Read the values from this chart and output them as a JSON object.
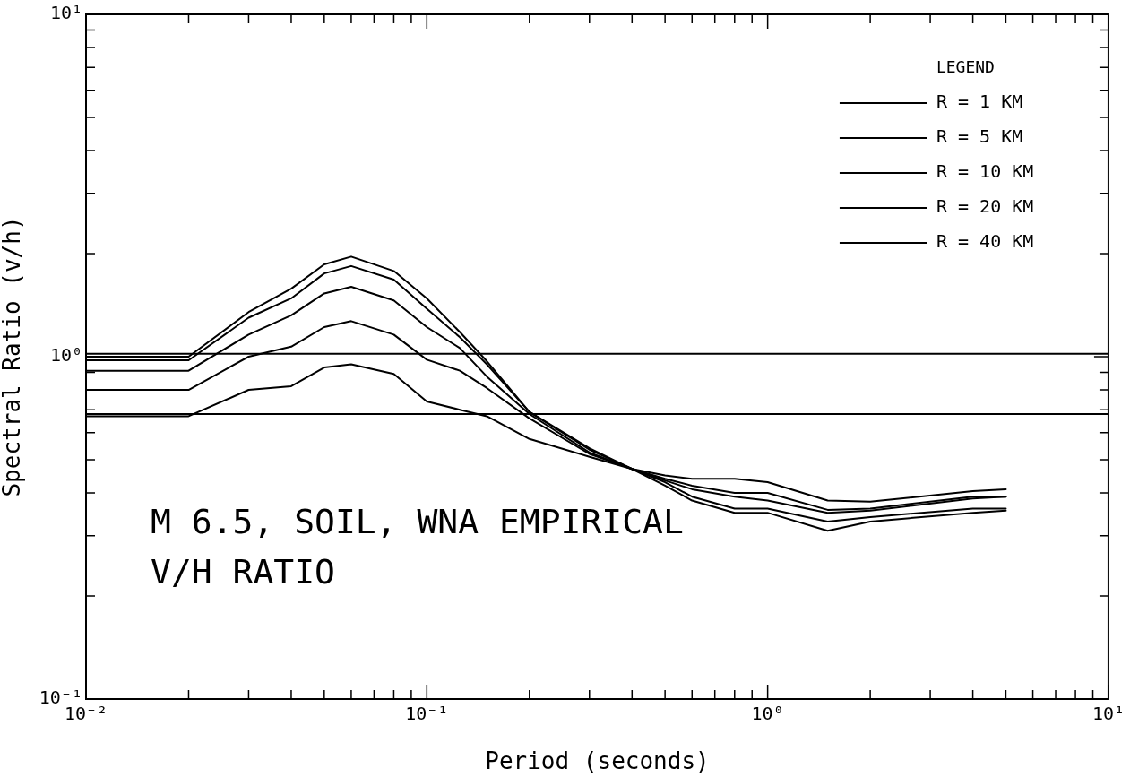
{
  "chart_data": {
    "type": "line",
    "xlabel": "Period (seconds)",
    "ylabel": "Spectral Ratio (v/h)",
    "log": "xy",
    "grid": false,
    "legend": "top right",
    "legend_title": "LEGEND",
    "marker": "none",
    "line_style": "solid",
    "x": [
      0.01,
      0.02,
      0.03,
      0.04,
      0.05,
      0.06,
      0.08,
      0.1,
      0.125,
      0.15,
      0.2,
      0.3,
      0.4,
      0.5,
      0.6,
      0.8,
      1.0,
      1.5,
      2,
      4,
      5
    ],
    "series": [
      {
        "name": "R = 1 KM",
        "color": "#000000",
        "values": [
          1.0,
          1.0,
          1.35,
          1.58,
          1.86,
          1.96,
          1.78,
          1.48,
          1.18,
          0.97,
          0.69,
          0.54,
          0.47,
          0.42,
          0.38,
          0.35,
          0.35,
          0.31,
          0.33,
          0.35,
          0.355
        ]
      },
      {
        "name": "R = 5 KM",
        "color": "#000000",
        "values": [
          0.976,
          0.976,
          1.3,
          1.48,
          1.75,
          1.84,
          1.68,
          1.38,
          1.14,
          0.95,
          0.69,
          0.535,
          0.47,
          0.43,
          0.39,
          0.36,
          0.36,
          0.33,
          0.34,
          0.36,
          0.36
        ]
      },
      {
        "name": "R = 10 KM",
        "color": "#000000",
        "values": [
          0.91,
          0.91,
          1.16,
          1.32,
          1.53,
          1.6,
          1.46,
          1.22,
          1.06,
          0.875,
          0.68,
          0.525,
          0.47,
          0.435,
          0.41,
          0.39,
          0.38,
          0.35,
          0.355,
          0.385,
          0.39
        ]
      },
      {
        "name": "R = 20 KM",
        "color": "#000000",
        "values": [
          0.8,
          0.8,
          1.0,
          1.07,
          1.22,
          1.27,
          1.16,
          0.98,
          0.91,
          0.81,
          0.66,
          0.52,
          0.47,
          0.44,
          0.42,
          0.4,
          0.4,
          0.357,
          0.36,
          0.39,
          0.39
        ]
      },
      {
        "name": "R = 40 KM",
        "color": "#000000",
        "values": [
          0.67,
          0.67,
          0.8,
          0.82,
          0.93,
          0.95,
          0.89,
          0.74,
          0.7,
          0.67,
          0.575,
          0.51,
          0.47,
          0.45,
          0.44,
          0.44,
          0.43,
          0.38,
          0.377,
          0.405,
          0.41
        ]
      }
    ],
    "xlim": [
      0.01,
      10
    ],
    "xticks": [
      {
        "value": 0.01,
        "label": "10⁻²"
      },
      {
        "value": 0.02,
        "label": null
      },
      {
        "value": 0.03,
        "label": null
      },
      {
        "value": 0.04,
        "label": null
      },
      {
        "value": 0.05,
        "label": null
      },
      {
        "value": 0.06,
        "label": null
      },
      {
        "value": 0.07,
        "label": null
      },
      {
        "value": 0.08,
        "label": null
      },
      {
        "value": 0.09,
        "label": null
      },
      {
        "value": 0.1,
        "label": "10⁻¹"
      },
      {
        "value": 0.2,
        "label": null
      },
      {
        "value": 0.3,
        "label": null
      },
      {
        "value": 0.4,
        "label": null
      },
      {
        "value": 0.5,
        "label": null
      },
      {
        "value": 0.6,
        "label": null
      },
      {
        "value": 0.7,
        "label": null
      },
      {
        "value": 0.8,
        "label": null
      },
      {
        "value": 0.9,
        "label": null
      },
      {
        "value": 1,
        "label": "10⁰"
      },
      {
        "value": 2,
        "label": null
      },
      {
        "value": 3,
        "label": null
      },
      {
        "value": 4,
        "label": null
      },
      {
        "value": 5,
        "label": null
      },
      {
        "value": 6,
        "label": null
      },
      {
        "value": 7,
        "label": null
      },
      {
        "value": 8,
        "label": null
      },
      {
        "value": 9,
        "label": null
      },
      {
        "value": 10,
        "label": "10¹"
      }
    ],
    "ylim": [
      0.1,
      10
    ],
    "yticks": [
      {
        "value": 0.1,
        "label": "10⁻¹"
      },
      {
        "value": 0.2,
        "label": null
      },
      {
        "value": 0.3,
        "label": null
      },
      {
        "value": 0.4,
        "label": null
      },
      {
        "value": 0.5,
        "label": null
      },
      {
        "value": 0.6,
        "label": null
      },
      {
        "value": 0.7,
        "label": null
      },
      {
        "value": 0.8,
        "label": null
      },
      {
        "value": 0.9,
        "label": null
      },
      {
        "value": 1,
        "label": "10⁰"
      },
      {
        "value": 2,
        "label": null
      },
      {
        "value": 3,
        "label": null
      },
      {
        "value": 4,
        "label": null
      },
      {
        "value": 5,
        "label": null
      },
      {
        "value": 6,
        "label": null
      },
      {
        "value": 7,
        "label": null
      },
      {
        "value": 8,
        "label": null
      },
      {
        "value": 9,
        "label": null
      },
      {
        "value": 10,
        "label": "10¹"
      }
    ],
    "ref_lines": [
      {
        "axis": "y",
        "value": 1.02,
        "color": "#000000"
      },
      {
        "axis": "y",
        "value": 0.68,
        "color": "#000000"
      }
    ],
    "annotations": [
      "M 6.5, SOIL, WNA EMPIRICAL\nV/H RATIO"
    ]
  }
}
